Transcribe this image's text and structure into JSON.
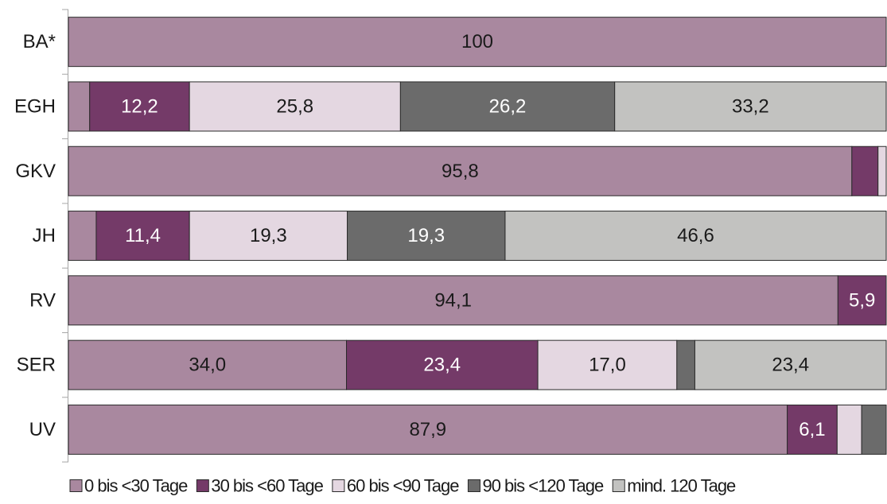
{
  "chart_data": {
    "type": "bar",
    "orientation": "horizontal",
    "stacked": "percent",
    "title": "",
    "xlabel": "",
    "ylabel": "",
    "xlim": [
      0,
      100
    ],
    "grid": false,
    "legend_position": "bottom",
    "categories": [
      "BA*",
      "EGH",
      "GKV",
      "JH",
      "RV",
      "SER",
      "UV"
    ],
    "series": [
      {
        "name": "0 bis <30 Tage",
        "color": "#a9889f",
        "values": [
          100,
          2.6,
          95.8,
          3.4,
          94.1,
          34.0,
          87.9
        ],
        "labels": [
          "100",
          "",
          "95,8",
          "",
          "94,1",
          "34,0",
          "87,9"
        ]
      },
      {
        "name": "30 bis <60 Tage",
        "color": "#743a68",
        "values": [
          0,
          12.2,
          3.2,
          11.4,
          5.9,
          23.4,
          6.1
        ],
        "labels": [
          "",
          "12,2",
          "",
          "11,4",
          "5,9",
          "23,4",
          "6,1"
        ]
      },
      {
        "name": "60 bis <90 Tage",
        "color": "#e4d7e1",
        "values": [
          0,
          25.8,
          1.0,
          19.3,
          0,
          17.0,
          3.0
        ],
        "labels": [
          "",
          "25,8",
          "",
          "19,3",
          "",
          "17,0",
          ""
        ]
      },
      {
        "name": "90 bis <120 Tage",
        "color": "#6b6b6b",
        "values": [
          0,
          26.2,
          0,
          19.3,
          0,
          2.2,
          3.0
        ],
        "labels": [
          "",
          "26,2",
          "",
          "19,3",
          "",
          "",
          ""
        ]
      },
      {
        "name": "mind. 120 Tage",
        "color": "#c2c2c0",
        "values": [
          0,
          33.2,
          0,
          46.6,
          0,
          23.4,
          0
        ],
        "labels": [
          "",
          "33,2",
          "",
          "46,6",
          "",
          "23,4",
          ""
        ]
      }
    ],
    "label_colors": {
      "on_light": "#1a1a1a",
      "on_dark": "#ffffff"
    }
  }
}
